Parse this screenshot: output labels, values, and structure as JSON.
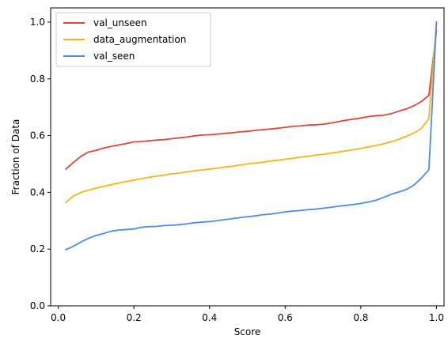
{
  "chart_data": {
    "type": "line",
    "title": "",
    "xlabel": "Score",
    "ylabel": "Fraction of Data",
    "xlim": [
      -0.02,
      1.02
    ],
    "ylim": [
      0.0,
      1.05
    ],
    "x_ticks": [
      0.0,
      0.2,
      0.4,
      0.6,
      0.8,
      1.0
    ],
    "x_tick_labels": [
      "0.0",
      "0.2",
      "0.4",
      "0.6",
      "0.8",
      "1.0"
    ],
    "y_ticks": [
      0.0,
      0.2,
      0.4,
      0.6,
      0.8,
      1.0
    ],
    "y_tick_labels": [
      "0.0",
      "0.2",
      "0.4",
      "0.6",
      "0.8",
      "1.0"
    ],
    "grid": false,
    "legend_position": "top-left",
    "series": [
      {
        "name": "val_unseen",
        "color": "#d9483b",
        "x": [
          0.02,
          0.04,
          0.06,
          0.08,
          0.1,
          0.12,
          0.14,
          0.16,
          0.18,
          0.2,
          0.22,
          0.24,
          0.26,
          0.28,
          0.3,
          0.32,
          0.34,
          0.36,
          0.38,
          0.4,
          0.42,
          0.44,
          0.46,
          0.48,
          0.5,
          0.52,
          0.54,
          0.56,
          0.58,
          0.6,
          0.62,
          0.64,
          0.66,
          0.68,
          0.7,
          0.72,
          0.74,
          0.76,
          0.78,
          0.8,
          0.82,
          0.84,
          0.86,
          0.88,
          0.9,
          0.92,
          0.94,
          0.96,
          0.98,
          1.0
        ],
        "y": [
          0.482,
          0.505,
          0.527,
          0.542,
          0.548,
          0.556,
          0.562,
          0.567,
          0.572,
          0.578,
          0.579,
          0.582,
          0.584,
          0.586,
          0.589,
          0.592,
          0.595,
          0.599,
          0.602,
          0.603,
          0.605,
          0.608,
          0.61,
          0.613,
          0.615,
          0.618,
          0.621,
          0.623,
          0.626,
          0.629,
          0.633,
          0.634,
          0.637,
          0.638,
          0.64,
          0.644,
          0.649,
          0.654,
          0.658,
          0.662,
          0.667,
          0.67,
          0.672,
          0.677,
          0.686,
          0.694,
          0.705,
          0.72,
          0.742,
          0.97
        ]
      },
      {
        "name": "data_augmentation",
        "color": "#f5b419",
        "x": [
          0.02,
          0.04,
          0.06,
          0.08,
          0.1,
          0.12,
          0.14,
          0.16,
          0.18,
          0.2,
          0.22,
          0.24,
          0.26,
          0.28,
          0.3,
          0.32,
          0.34,
          0.36,
          0.38,
          0.4,
          0.42,
          0.44,
          0.46,
          0.48,
          0.5,
          0.52,
          0.54,
          0.56,
          0.58,
          0.6,
          0.62,
          0.64,
          0.66,
          0.68,
          0.7,
          0.72,
          0.74,
          0.76,
          0.78,
          0.8,
          0.82,
          0.84,
          0.86,
          0.88,
          0.9,
          0.92,
          0.94,
          0.96,
          0.98,
          1.0
        ],
        "y": [
          0.365,
          0.387,
          0.4,
          0.408,
          0.415,
          0.421,
          0.427,
          0.433,
          0.438,
          0.443,
          0.448,
          0.453,
          0.457,
          0.461,
          0.465,
          0.468,
          0.472,
          0.476,
          0.479,
          0.482,
          0.485,
          0.489,
          0.492,
          0.496,
          0.5,
          0.503,
          0.506,
          0.51,
          0.513,
          0.517,
          0.52,
          0.524,
          0.527,
          0.531,
          0.534,
          0.538,
          0.542,
          0.546,
          0.55,
          0.555,
          0.56,
          0.565,
          0.571,
          0.578,
          0.587,
          0.597,
          0.609,
          0.625,
          0.66,
          1.0
        ]
      },
      {
        "name": "val_seen",
        "color": "#4c8ce8",
        "x": [
          0.02,
          0.04,
          0.06,
          0.08,
          0.1,
          0.12,
          0.14,
          0.16,
          0.18,
          0.2,
          0.22,
          0.24,
          0.26,
          0.28,
          0.3,
          0.32,
          0.34,
          0.36,
          0.38,
          0.4,
          0.42,
          0.44,
          0.46,
          0.48,
          0.5,
          0.52,
          0.54,
          0.56,
          0.58,
          0.6,
          0.62,
          0.64,
          0.66,
          0.68,
          0.7,
          0.72,
          0.74,
          0.76,
          0.78,
          0.8,
          0.82,
          0.84,
          0.86,
          0.88,
          0.9,
          0.92,
          0.94,
          0.96,
          0.98,
          1.0
        ],
        "y": [
          0.198,
          0.21,
          0.225,
          0.238,
          0.248,
          0.255,
          0.263,
          0.267,
          0.269,
          0.271,
          0.277,
          0.279,
          0.28,
          0.283,
          0.284,
          0.286,
          0.289,
          0.293,
          0.295,
          0.297,
          0.3,
          0.304,
          0.307,
          0.311,
          0.314,
          0.317,
          0.321,
          0.323,
          0.327,
          0.331,
          0.334,
          0.336,
          0.339,
          0.341,
          0.344,
          0.347,
          0.351,
          0.354,
          0.357,
          0.361,
          0.366,
          0.372,
          0.382,
          0.393,
          0.401,
          0.41,
          0.425,
          0.45,
          0.48,
          1.0
        ]
      }
    ]
  }
}
